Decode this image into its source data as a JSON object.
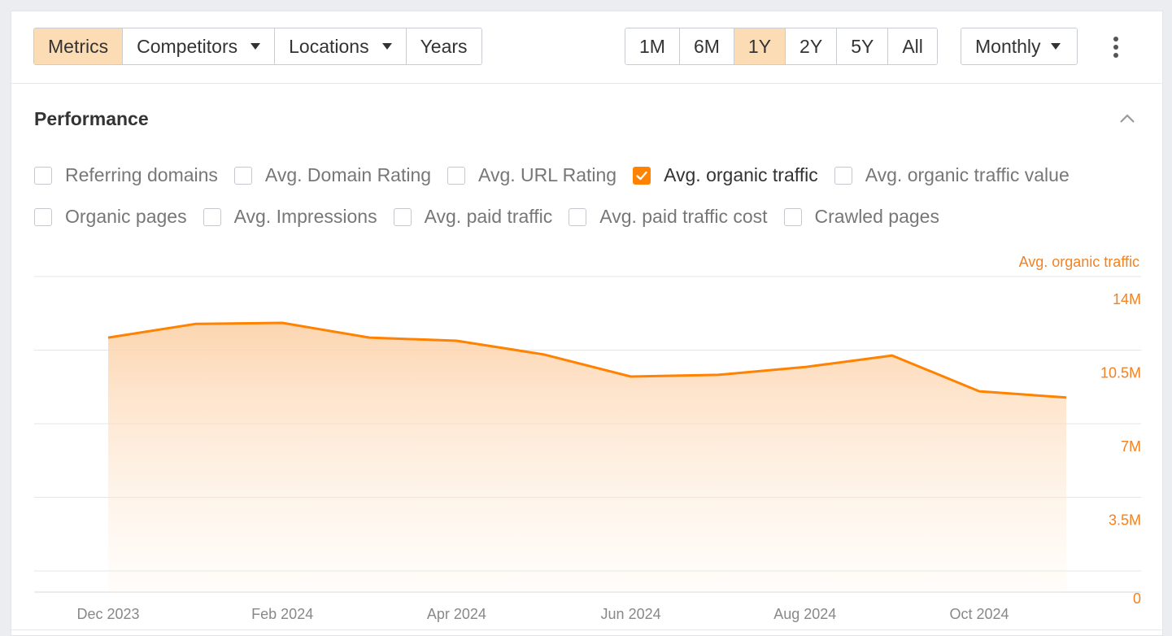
{
  "toolbar": {
    "left_group": [
      {
        "label": "Metrics",
        "active": true,
        "dropdown": false
      },
      {
        "label": "Competitors",
        "active": false,
        "dropdown": true
      },
      {
        "label": "Locations",
        "active": false,
        "dropdown": true
      },
      {
        "label": "Years",
        "active": false,
        "dropdown": false
      }
    ],
    "ranges": [
      {
        "label": "1M",
        "active": false
      },
      {
        "label": "6M",
        "active": false
      },
      {
        "label": "1Y",
        "active": true
      },
      {
        "label": "2Y",
        "active": false
      },
      {
        "label": "5Y",
        "active": false
      },
      {
        "label": "All",
        "active": false
      }
    ],
    "interval_label": "Monthly"
  },
  "performance": {
    "title": "Performance",
    "metrics_row1": [
      {
        "label": "Referring domains",
        "checked": false
      },
      {
        "label": "Avg. Domain Rating",
        "checked": false
      },
      {
        "label": "Avg. URL Rating",
        "checked": false
      },
      {
        "label": "Avg. organic traffic",
        "checked": true
      },
      {
        "label": "Avg. organic traffic value",
        "checked": false
      }
    ],
    "metrics_row2": [
      {
        "label": "Organic pages",
        "checked": false
      },
      {
        "label": "Avg. Impressions",
        "checked": false
      },
      {
        "label": "Avg. paid traffic",
        "checked": false
      },
      {
        "label": "Avg. paid traffic cost",
        "checked": false
      },
      {
        "label": "Crawled pages",
        "checked": false
      }
    ]
  },
  "chart_data": {
    "type": "area",
    "series_axis_title": "Avg. organic traffic",
    "accent_color": "#ff8200",
    "label_color": "#f58220",
    "y_ticks": [
      {
        "value": 0,
        "label": "0"
      },
      {
        "value": 3500000,
        "label": "3.5M"
      },
      {
        "value": 7000000,
        "label": "7M"
      },
      {
        "value": 10500000,
        "label": "10.5M"
      },
      {
        "value": 14000000,
        "label": "14M"
      }
    ],
    "ylim": [
      0,
      14000000
    ],
    "x_ticks": [
      "Dec 2023",
      "Feb 2024",
      "Apr 2024",
      "Jun 2024",
      "Aug 2024",
      "Oct 2024"
    ],
    "x": [
      "Dec 2023",
      "Jan 2024",
      "Feb 2024",
      "Mar 2024",
      "Apr 2024",
      "May 2024",
      "Jun 2024",
      "Jul 2024",
      "Aug 2024",
      "Sep 2024",
      "Oct 2024",
      "Nov 2024"
    ],
    "series": [
      {
        "values": [
          12100000,
          12750000,
          12800000,
          12100000,
          11950000,
          11300000,
          10250000,
          10330000,
          10700000,
          11250000,
          9550000,
          9250000
        ]
      }
    ],
    "grid": true
  }
}
